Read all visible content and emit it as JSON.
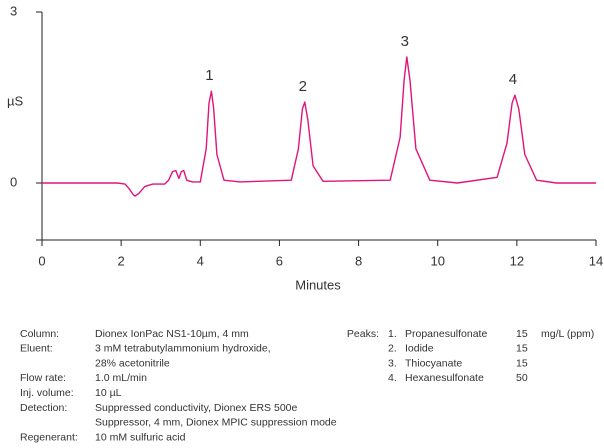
{
  "chart_data": {
    "type": "line",
    "xlabel": "Minutes",
    "ylabel": "µS",
    "xlim": [
      0,
      14
    ],
    "xticks": [
      0,
      2,
      4,
      6,
      8,
      10,
      12,
      14
    ],
    "ylim": [
      -1,
      3
    ],
    "yticks": [
      0,
      3
    ],
    "annotations": [
      "1",
      "2",
      "3",
      "4"
    ],
    "series": [
      {
        "color": "#e0147a",
        "x": [
          0,
          1.9,
          2.1,
          2.2,
          2.3,
          2.35,
          2.45,
          2.6,
          2.8,
          3.1,
          3.2,
          3.3,
          3.38,
          3.46,
          3.52,
          3.58,
          3.66,
          3.8,
          4.0,
          4.15,
          4.22,
          4.28,
          4.34,
          4.42,
          4.6,
          5.0,
          6.3,
          6.48,
          6.58,
          6.64,
          6.72,
          6.85,
          7.1,
          8.8,
          9.05,
          9.15,
          9.22,
          9.3,
          9.45,
          9.8,
          10.5,
          11.5,
          11.75,
          11.88,
          11.95,
          12.05,
          12.2,
          12.5,
          13,
          14
        ],
        "values": [
          0,
          0,
          -0.02,
          -0.1,
          -0.2,
          -0.23,
          -0.18,
          -0.06,
          -0.02,
          -0.02,
          0.05,
          0.2,
          0.22,
          0.08,
          0.2,
          0.22,
          0.05,
          0.02,
          0.02,
          0.6,
          1.4,
          1.61,
          1.3,
          0.5,
          0.05,
          0.02,
          0.05,
          0.6,
          1.3,
          1.42,
          1.1,
          0.3,
          0.03,
          0.05,
          0.8,
          1.8,
          2.21,
          1.8,
          0.6,
          0.05,
          0.0,
          0.1,
          0.7,
          1.4,
          1.54,
          1.3,
          0.5,
          0.05,
          0.0,
          0.0
        ]
      }
    ]
  },
  "conditions": [
    {
      "label": "Column:",
      "lines": [
        "Dionex IonPac NS1-10µm, 4 mm"
      ]
    },
    {
      "label": "Eluent:",
      "lines": [
        "3 mM tetrabutylammonium hydroxide,",
        "28% acetonitrile"
      ]
    },
    {
      "label": "Flow rate:",
      "lines": [
        "1.0 mL/min"
      ]
    },
    {
      "label": "Inj. volume:",
      "lines": [
        "10 µL"
      ]
    },
    {
      "label": "Detection:",
      "lines": [
        "Suppressed conductivity, Dionex ERS 500e",
        "Suppressor, 4 mm, Dionex MPIC suppression mode"
      ]
    },
    {
      "label": "Regenerant:",
      "lines": [
        "10 mM sulfuric acid"
      ]
    }
  ],
  "peaks": {
    "label": "Peaks:",
    "unit": "mg/L (ppm)",
    "rows": [
      {
        "num": "1.",
        "name": "Propanesulfonate",
        "conc": 15
      },
      {
        "num": "2.",
        "name": "Iodide",
        "conc": 15
      },
      {
        "num": "3.",
        "name": "Thiocyanate",
        "conc": 15
      },
      {
        "num": "4.",
        "name": "Hexanesulfonate",
        "conc": 50
      }
    ]
  }
}
